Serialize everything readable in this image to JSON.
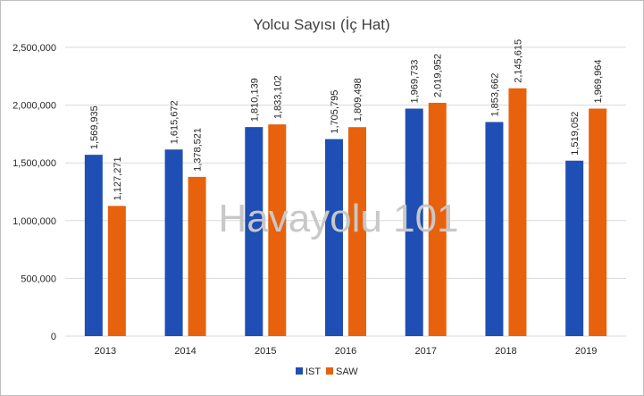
{
  "chart_data": {
    "type": "bar",
    "title": "Yolcu Sayısı (İç Hat)",
    "categories": [
      "2013",
      "2014",
      "2015",
      "2016",
      "2017",
      "2018",
      "2019"
    ],
    "series": [
      {
        "name": "IST",
        "color": "#1f4fb5",
        "values": [
          1569935,
          1615672,
          1810139,
          1705795,
          1969733,
          1853662,
          1519052
        ]
      },
      {
        "name": "SAW",
        "color": "#e8610c",
        "values": [
          1127271,
          1378521,
          1833102,
          1809498,
          2019952,
          2145615,
          1969964
        ]
      }
    ],
    "ylim": [
      0,
      2500000
    ],
    "yticks": [
      "0",
      "500,000",
      "1,000,000",
      "1,500,000",
      "2,000,000",
      "2,500,000"
    ],
    "grid": true,
    "legend_position": "bottom",
    "xlabel": "",
    "ylabel": ""
  },
  "watermark": "Havayolu 101"
}
